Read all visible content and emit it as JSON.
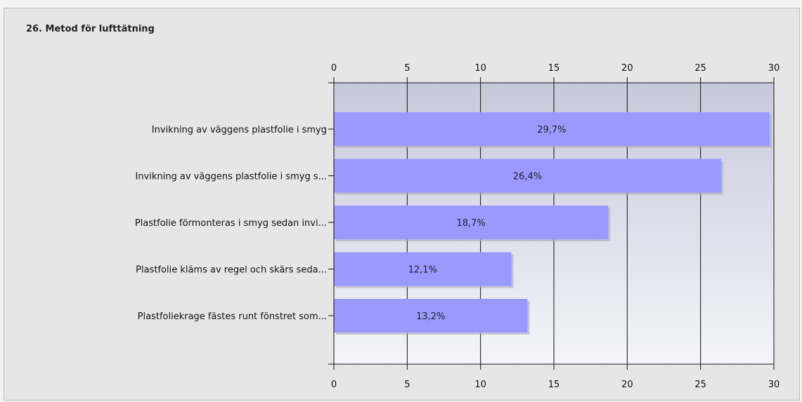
{
  "chart_data": {
    "type": "bar",
    "orientation": "horizontal",
    "title": "26. Metod för lufttätning",
    "categories": [
      "Invikning av väggens plastfolie i smyg",
      "Invikning av väggens plastfolie i smyg s...",
      "Plastfolie förmonteras i smyg sedan invi...",
      "Plastfolie kläms av regel och skärs seda...",
      "Plastfoliekrage fästes runt fönstret som..."
    ],
    "values": [
      29.7,
      26.4,
      18.7,
      12.1,
      13.2
    ],
    "data_labels": [
      "29,7%",
      "26,4%",
      "18,7%",
      "12,1%",
      "13,2%"
    ],
    "xlim": [
      0,
      30
    ],
    "xticks": [
      0,
      5,
      10,
      15,
      20,
      25,
      30
    ],
    "xlabel": "",
    "ylabel": "",
    "grid": "vertical",
    "axis_labels_position": "top and bottom",
    "bar_color": "#9999ff",
    "plot_bg_gradient": [
      "#c8c8dc",
      "#f4f4fa"
    ]
  }
}
